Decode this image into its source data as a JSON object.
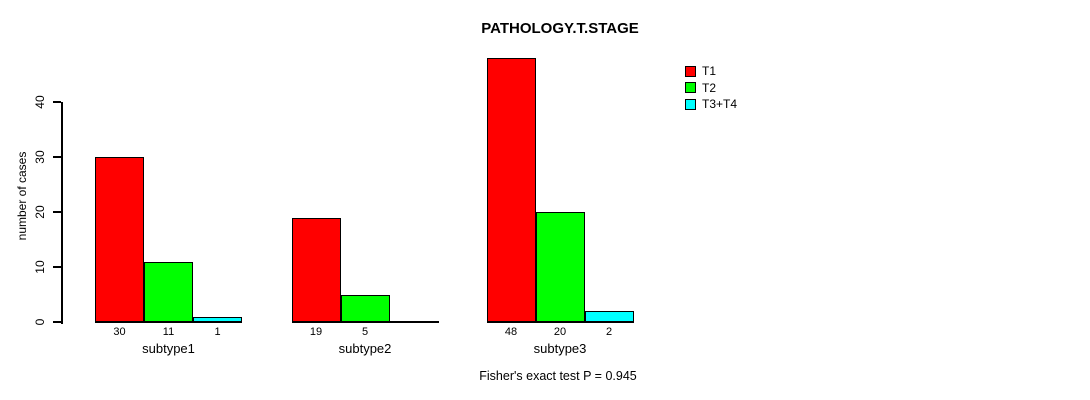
{
  "figure": {
    "title": "PATHOLOGY.T.STAGE",
    "annotation": "Fisher's exact test P = 0.945"
  },
  "chart_data": {
    "type": "bar",
    "title": "PATHOLOGY.T.STAGE",
    "xlabel": "",
    "ylabel": "number of cases",
    "categories": [
      "subtype1",
      "subtype2",
      "subtype3"
    ],
    "series": [
      {
        "name": "T1",
        "color": "#ff0000",
        "values": [
          30,
          19,
          48
        ]
      },
      {
        "name": "T2",
        "color": "#00ff00",
        "values": [
          11,
          5,
          20
        ]
      },
      {
        "name": "T3+T4",
        "color": "#00ffff",
        "values": [
          1,
          0,
          2
        ]
      }
    ],
    "yticks": [
      0,
      10,
      20,
      30,
      40
    ],
    "ylim": [
      0,
      48
    ],
    "grid": false,
    "legend_position": "top-right",
    "bar_value_labels_shown": true,
    "zero_value_bars_hidden": true,
    "annotation": "Fisher's exact test P = 0.945"
  }
}
